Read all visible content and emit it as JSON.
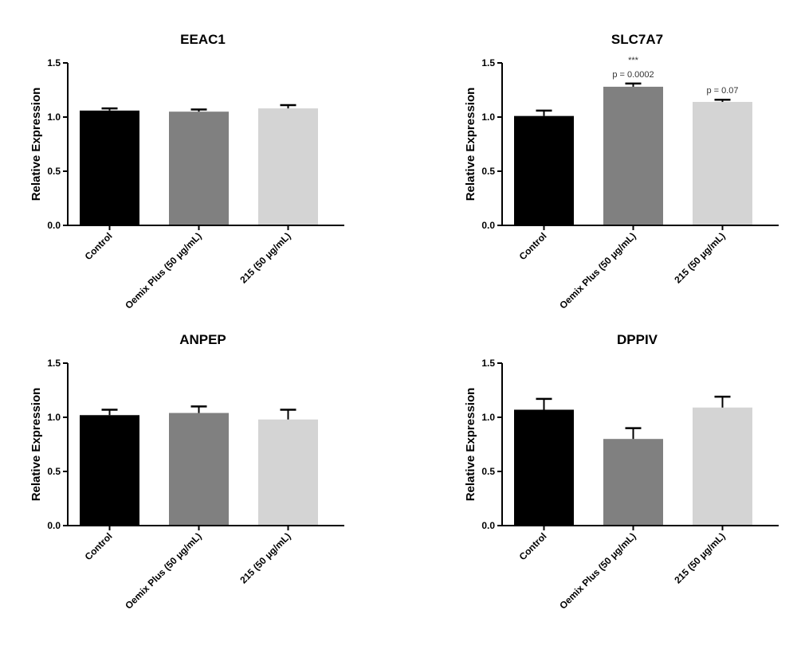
{
  "chart_data": [
    {
      "type": "bar",
      "title": "EEAC1",
      "ylabel": "Relative Expression",
      "xlabel": "",
      "categories": [
        "Control",
        "Oemix Plus (50 μg/mL)",
        "215 (50 μg/mL)"
      ],
      "values": [
        1.06,
        1.05,
        1.08
      ],
      "errors": [
        0.02,
        0.02,
        0.03
      ],
      "colors": [
        "#000000",
        "#808080",
        "#d4d4d4"
      ],
      "ylim": [
        0,
        1.5
      ],
      "yticks": [
        "0.0",
        "0.5",
        "1.0",
        "1.5"
      ],
      "annotations": []
    },
    {
      "type": "bar",
      "title": "SLC7A7",
      "ylabel": "Relative Expression",
      "xlabel": "",
      "categories": [
        "Control",
        "Oemix Plus (50 μg/mL)",
        "215 (50 μg/mL)"
      ],
      "values": [
        1.01,
        1.28,
        1.14
      ],
      "errors": [
        0.05,
        0.03,
        0.02
      ],
      "colors": [
        "#000000",
        "#808080",
        "#d4d4d4"
      ],
      "ylim": [
        0,
        1.5
      ],
      "yticks": [
        "0.0",
        "0.5",
        "1.0",
        "1.5"
      ],
      "annotations": [
        {
          "category": 1,
          "lines": [
            "***",
            "p = 0.0002"
          ]
        },
        {
          "category": 2,
          "lines": [
            "p = 0.07"
          ]
        }
      ]
    },
    {
      "type": "bar",
      "title": "ANPEP",
      "ylabel": "Relative Expression",
      "xlabel": "",
      "categories": [
        "Control",
        "Oemix Plus (50 μg/mL)",
        "215 (50 μg/mL)"
      ],
      "values": [
        1.02,
        1.04,
        0.98
      ],
      "errors": [
        0.05,
        0.06,
        0.09
      ],
      "colors": [
        "#000000",
        "#808080",
        "#d4d4d4"
      ],
      "ylim": [
        0,
        1.5
      ],
      "yticks": [
        "0.0",
        "0.5",
        "1.0",
        "1.5"
      ],
      "annotations": []
    },
    {
      "type": "bar",
      "title": "DPPIV",
      "ylabel": "Relative Expression",
      "xlabel": "",
      "categories": [
        "Control",
        "Oemix Plus (50 μg/mL)",
        "215 (50 μg/mL)"
      ],
      "values": [
        1.07,
        0.8,
        1.09
      ],
      "errors": [
        0.1,
        0.1,
        0.1
      ],
      "colors": [
        "#000000",
        "#808080",
        "#d4d4d4"
      ],
      "ylim": [
        0,
        1.5
      ],
      "yticks": [
        "0.0",
        "0.5",
        "1.0",
        "1.5"
      ],
      "annotations": []
    }
  ]
}
